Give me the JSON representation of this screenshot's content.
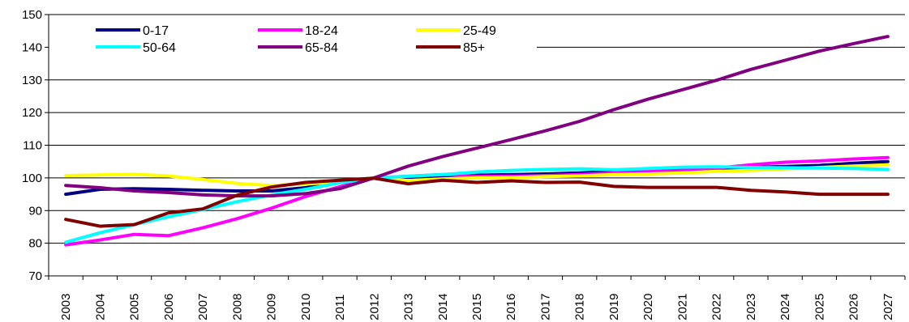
{
  "chart_data": {
    "type": "line",
    "title": "",
    "xlabel": "",
    "ylabel": "",
    "x": [
      "2003",
      "2004",
      "2005",
      "2006",
      "2007",
      "2008",
      "2009",
      "2010",
      "2011",
      "2012",
      "2013",
      "2014",
      "2015",
      "2016",
      "2017",
      "2018",
      "2019",
      "2020",
      "2021",
      "2022",
      "2023",
      "2024",
      "2025",
      "2026",
      "2027"
    ],
    "ylim": [
      70,
      150
    ],
    "yticks": [
      70,
      80,
      90,
      100,
      110,
      120,
      130,
      140,
      150
    ],
    "grid": "horizontal",
    "legend_position": "top-left",
    "series": [
      {
        "name": "0-17",
        "color": "#000080",
        "values": [
          95,
          96.5,
          96.7,
          96.5,
          96.2,
          96,
          96,
          97,
          98.7,
          100,
          100.2,
          100.5,
          100.8,
          101,
          101.2,
          101.5,
          102,
          102.2,
          102.5,
          102.8,
          103.2,
          103.5,
          103.8,
          104.5,
          105
        ]
      },
      {
        "name": "18-24",
        "color": "#ff00ff",
        "values": [
          79.5,
          81,
          82.7,
          82.3,
          84.7,
          87.5,
          90.7,
          94.3,
          97.3,
          100,
          100.5,
          101,
          100.5,
          100.5,
          100.7,
          101,
          101.5,
          102,
          102.5,
          103,
          104,
          104.8,
          105.2,
          105.8,
          106.2
        ]
      },
      {
        "name": "25-49",
        "color": "#ffff00",
        "values": [
          100.7,
          100.9,
          101.1,
          100.6,
          99.5,
          98.3,
          97.7,
          98.1,
          98.8,
          100,
          99.2,
          99.7,
          100,
          100.1,
          100.4,
          100.6,
          101,
          101.2,
          101.5,
          102,
          102.3,
          102.8,
          103.2,
          103.6,
          104
        ]
      },
      {
        "name": "50-64",
        "color": "#00ffff",
        "values": [
          80.3,
          83.2,
          85.7,
          88.1,
          90.3,
          92.7,
          94.8,
          96.5,
          98.5,
          100,
          100.5,
          101,
          101.8,
          102.3,
          102.6,
          102.8,
          102.5,
          102.9,
          103.3,
          103.4,
          103.2,
          103.1,
          103.0,
          102.9,
          102.6
        ]
      },
      {
        "name": "65-84",
        "color": "#800080",
        "values": [
          97.7,
          97,
          96,
          95.5,
          94.8,
          94.5,
          94.5,
          95.2,
          96.7,
          100,
          103.6,
          106.5,
          109.1,
          111.7,
          114.4,
          117.3,
          120.9,
          124.1,
          127,
          129.9,
          133.2,
          136,
          138.8,
          141.1,
          143.3
        ]
      },
      {
        "name": "85+",
        "color": "#800000",
        "values": [
          87.3,
          85.2,
          85.7,
          89.3,
          90.5,
          94.7,
          97.2,
          98.6,
          99.3,
          99.9,
          98.2,
          99.3,
          98.6,
          99.1,
          98.6,
          98.7,
          97.4,
          97.1,
          97.1,
          97.1,
          96.2,
          95.7,
          95,
          95,
          95
        ]
      }
    ]
  }
}
